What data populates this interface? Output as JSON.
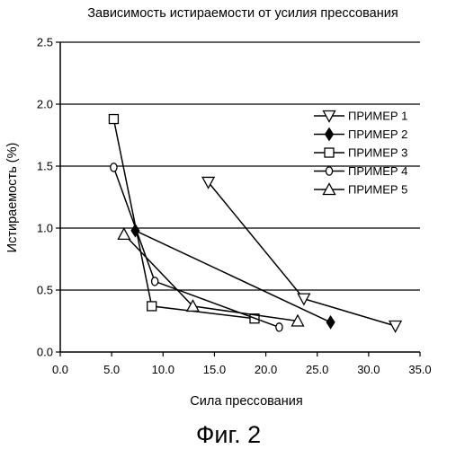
{
  "chart_data": {
    "type": "line",
    "title": "Зависимость истираемости от усилия прессования",
    "xlabel": "Сила прессования",
    "ylabel": "Истираемость (%)",
    "xlim": [
      0,
      35
    ],
    "ylim": [
      0,
      2.5
    ],
    "xticks": [
      "0.0",
      "5.0",
      "10.0",
      "15.0",
      "20.0",
      "25.0",
      "30.0",
      "35.0"
    ],
    "yticks": [
      "0.0",
      "0.5",
      "1.0",
      "1.5",
      "2.0",
      "2.5"
    ],
    "grid": "horizontal",
    "legend_position": "right",
    "series": [
      {
        "name": "ПРИМЕР 1",
        "marker": "triangle-down",
        "points": [
          [
            14.4,
            1.37
          ],
          [
            23.7,
            0.43
          ],
          [
            32.6,
            0.21
          ]
        ]
      },
      {
        "name": "ПРИМЕР 2",
        "marker": "diamond-filled",
        "points": [
          [
            7.3,
            0.98
          ],
          [
            26.3,
            0.24
          ]
        ]
      },
      {
        "name": "ПРИМЕР 3",
        "marker": "square",
        "points": [
          [
            5.2,
            1.88
          ],
          [
            8.9,
            0.37
          ],
          [
            18.9,
            0.27
          ]
        ]
      },
      {
        "name": "ПРИМЕР 4",
        "marker": "circle",
        "points": [
          [
            5.2,
            1.49
          ],
          [
            9.2,
            0.57
          ],
          [
            21.3,
            0.2
          ]
        ]
      },
      {
        "name": "ПРИМЕР 5",
        "marker": "triangle-up",
        "points": [
          [
            6.2,
            0.95
          ],
          [
            12.9,
            0.37
          ],
          [
            23.1,
            0.25
          ]
        ]
      }
    ]
  },
  "caption": "Фиг. 2"
}
